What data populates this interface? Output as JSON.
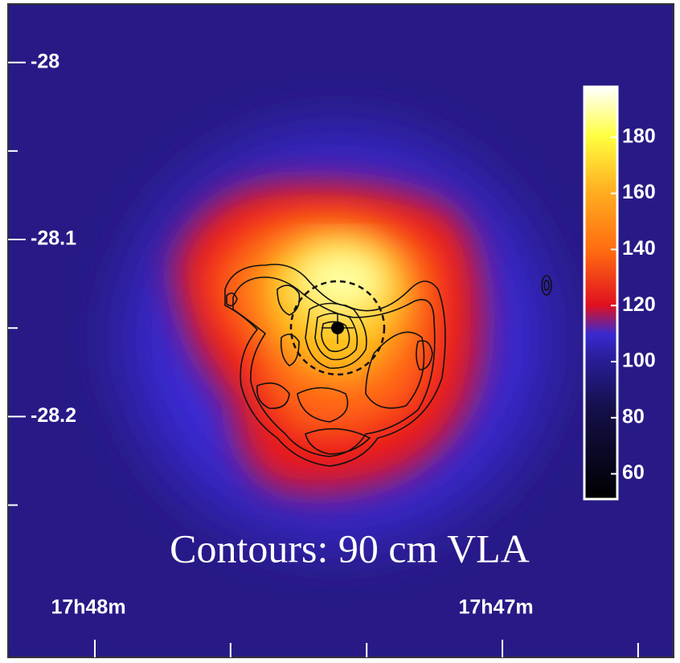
{
  "chart_data": {
    "type": "heatmap",
    "annotation": "Contours: 90 cm VLA",
    "xlim": [
      48.213,
      46.58
    ],
    "xticks": [
      {
        "value": 48,
        "label": "17h48m"
      },
      {
        "value": 47,
        "label": "17h47m"
      }
    ],
    "xminor_ticks": [
      47.667,
      47.333,
      46.667
    ],
    "ylim": [
      -28.336,
      -27.967
    ],
    "yticks": [
      -28,
      -28.1,
      -28.2
    ],
    "yminor_ticks": [
      -28.05,
      -28.15,
      -28.25
    ],
    "clim": [
      51,
      198
    ],
    "cticks": [
      60,
      80,
      100,
      120,
      140,
      160,
      180
    ]
  }
}
